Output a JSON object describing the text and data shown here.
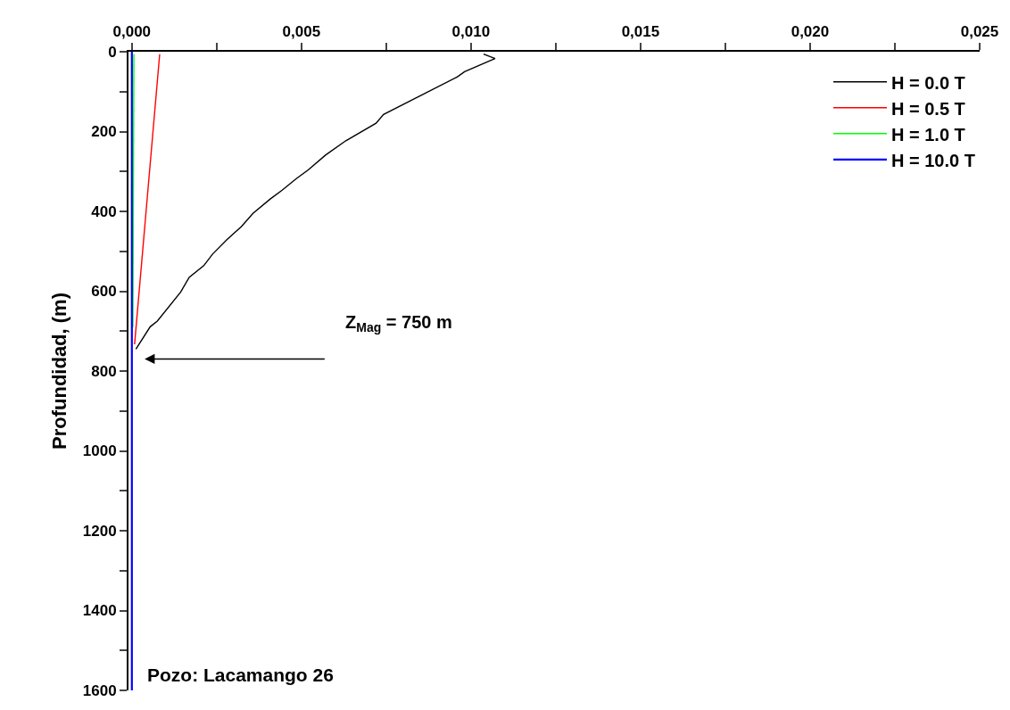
{
  "chart_data": {
    "type": "line",
    "ylabel": "Profundidad, (m)",
    "xlim": [
      -0.0001,
      0.025
    ],
    "ylim": [
      1600,
      0
    ],
    "xticks": [
      {
        "value": 0,
        "label": "0,000"
      },
      {
        "value": 0.0025,
        "label": null
      },
      {
        "value": 0.005,
        "label": "0,005"
      },
      {
        "value": 0.0075,
        "label": null
      },
      {
        "value": 0.01,
        "label": "0,010"
      },
      {
        "value": 0.0125,
        "label": null
      },
      {
        "value": 0.015,
        "label": "0,015"
      },
      {
        "value": 0.0175,
        "label": null
      },
      {
        "value": 0.02,
        "label": "0,020"
      },
      {
        "value": 0.0225,
        "label": null
      },
      {
        "value": 0.025,
        "label": "0,025"
      }
    ],
    "yticks": [
      0,
      {
        "value": 100,
        "label": null
      },
      200,
      {
        "value": 300,
        "label": null
      },
      400,
      {
        "value": 500,
        "label": null
      },
      600,
      {
        "value": 700,
        "label": null
      },
      800,
      {
        "value": 900,
        "label": null
      },
      1000,
      {
        "value": 1100,
        "label": null
      },
      1200,
      {
        "value": 1300,
        "label": null
      },
      1400,
      {
        "value": 1500,
        "label": null
      },
      1600
    ],
    "legend": "top right",
    "marker": "none",
    "line_style": "solid",
    "series": [
      {
        "name": "H = 0.0 T",
        "color": "#000000",
        "x": [
          0.01037,
          0.01071,
          0.00981,
          0.0096,
          0.00742,
          0.0072,
          0.00631,
          0.00571,
          0.0052,
          0.00485,
          0.00443,
          0.00408,
          0.00357,
          0.00323,
          0.0028,
          0.00238,
          0.00212,
          0.00169,
          0.00144,
          0.00075,
          0.00054,
          0.00012
        ],
        "values": [
          6,
          17,
          50,
          63,
          157,
          179,
          223,
          259,
          296,
          318,
          347,
          369,
          405,
          438,
          471,
          507,
          536,
          565,
          602,
          675,
          689,
          745
        ]
      },
      {
        "name": "H = 0.5 T",
        "color": "#ff0000",
        "x": [
          0.00082,
          8e-05
        ],
        "values": [
          6,
          733
        ]
      },
      {
        "name": "H = 1.0 T",
        "color": "#00ff00",
        "x": [
          6e-05,
          3e-05
        ],
        "values": [
          6,
          690
        ]
      },
      {
        "name": "H = 10.0 T",
        "color": "#0000ff",
        "x": [
          0.0,
          0.0
        ],
        "values": [
          0,
          1600
        ]
      }
    ],
    "annotations": [
      "Z$_{Mag}$ = 750 m",
      "Pozo: Lacamango 26"
    ]
  }
}
